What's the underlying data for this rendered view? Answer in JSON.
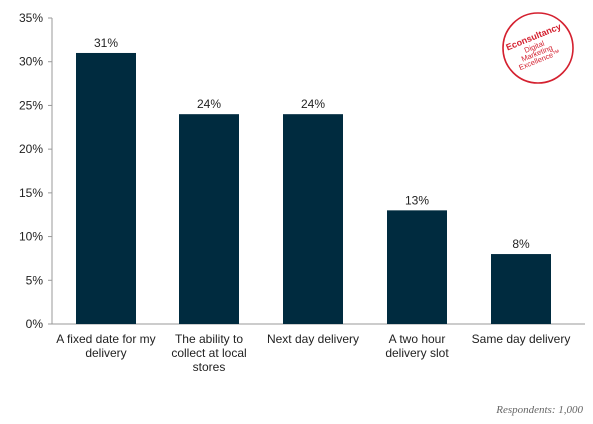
{
  "chart_data": {
    "type": "bar",
    "categories": [
      [
        "A fixed date for my",
        "delivery"
      ],
      [
        "The ability to",
        "collect at local",
        "stores"
      ],
      [
        "Next day delivery"
      ],
      [
        "A two hour",
        "delivery slot"
      ],
      [
        "Same day delivery"
      ]
    ],
    "values": [
      31,
      24,
      24,
      13,
      8
    ],
    "value_labels": [
      "31%",
      "24%",
      "24%",
      "13%",
      "8%"
    ],
    "ylim": [
      0,
      35
    ],
    "yticks": [
      0,
      5,
      10,
      15,
      20,
      25,
      30,
      35
    ],
    "ytick_labels": [
      "0%",
      "5%",
      "10%",
      "15%",
      "20%",
      "25%",
      "30%",
      "35%"
    ],
    "grid": false,
    "bar_color": "#002b3f"
  },
  "logo": {
    "brand": "Econsultancy",
    "lines": [
      "Digital",
      "Marketing",
      "Excellence™"
    ],
    "color": "#d4202f"
  },
  "source": "Respondents: 1,000"
}
